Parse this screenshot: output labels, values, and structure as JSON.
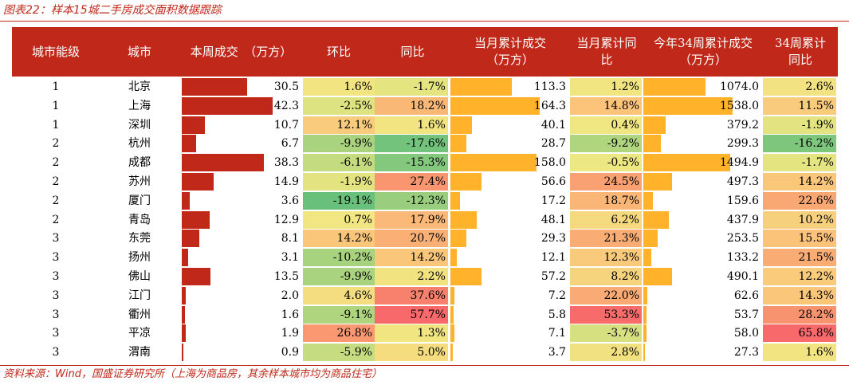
{
  "caption": "图表22：样本15城二手房成交面积数据跟踪",
  "footer": "资料来源：Wind，国盛证券研究所（上海为商品房，其余样本城市均为商品住宅）",
  "colors": {
    "accent": "#c0281a",
    "bar_weekly": "#c0281a",
    "bar_cumulative": "#ffb22a"
  },
  "headers": [
    "城市能级",
    "城市",
    "本周成交　（万方）",
    "环比",
    "同比",
    "当月累计成交（万方）",
    "当月累计同比",
    "今年34周累计成交（万方）",
    "34周累计同比"
  ],
  "rows": [
    {
      "tier": "1",
      "city": "北京",
      "weekly": "30.5",
      "wow": "1.6%",
      "yoy": "-1.7%",
      "month_cum": "113.3",
      "month_yoy": "1.2%",
      "ytd_cum": "1074.0",
      "ytd_yoy": "2.6%"
    },
    {
      "tier": "1",
      "city": "上海",
      "weekly": "42.3",
      "wow": "-2.5%",
      "yoy": "18.2%",
      "month_cum": "164.3",
      "month_yoy": "14.8%",
      "ytd_cum": "1538.0",
      "ytd_yoy": "11.5%"
    },
    {
      "tier": "1",
      "city": "深圳",
      "weekly": "10.7",
      "wow": "12.1%",
      "yoy": "1.6%",
      "month_cum": "40.1",
      "month_yoy": "0.4%",
      "ytd_cum": "379.2",
      "ytd_yoy": "-1.9%"
    },
    {
      "tier": "2",
      "city": "杭州",
      "weekly": "6.7",
      "wow": "-9.9%",
      "yoy": "-17.6%",
      "month_cum": "28.7",
      "month_yoy": "-9.2%",
      "ytd_cum": "299.3",
      "ytd_yoy": "-16.2%"
    },
    {
      "tier": "2",
      "city": "成都",
      "weekly": "38.3",
      "wow": "-6.1%",
      "yoy": "-15.3%",
      "month_cum": "158.0",
      "month_yoy": "-0.5%",
      "ytd_cum": "1494.9",
      "ytd_yoy": "-1.7%"
    },
    {
      "tier": "2",
      "city": "苏州",
      "weekly": "14.9",
      "wow": "-1.9%",
      "yoy": "27.4%",
      "month_cum": "56.6",
      "month_yoy": "24.5%",
      "ytd_cum": "497.3",
      "ytd_yoy": "14.2%"
    },
    {
      "tier": "2",
      "city": "厦门",
      "weekly": "3.6",
      "wow": "-19.1%",
      "yoy": "-12.3%",
      "month_cum": "17.2",
      "month_yoy": "18.7%",
      "ytd_cum": "159.6",
      "ytd_yoy": "22.6%"
    },
    {
      "tier": "2",
      "city": "青岛",
      "weekly": "12.9",
      "wow": "0.7%",
      "yoy": "17.9%",
      "month_cum": "48.1",
      "month_yoy": "6.2%",
      "ytd_cum": "437.9",
      "ytd_yoy": "10.2%"
    },
    {
      "tier": "3",
      "city": "东莞",
      "weekly": "8.1",
      "wow": "14.2%",
      "yoy": "20.7%",
      "month_cum": "29.3",
      "month_yoy": "21.3%",
      "ytd_cum": "253.5",
      "ytd_yoy": "15.5%"
    },
    {
      "tier": "3",
      "city": "扬州",
      "weekly": "3.1",
      "wow": "-10.2%",
      "yoy": "14.2%",
      "month_cum": "12.1",
      "month_yoy": "12.3%",
      "ytd_cum": "133.2",
      "ytd_yoy": "21.5%"
    },
    {
      "tier": "3",
      "city": "佛山",
      "weekly": "13.5",
      "wow": "-9.9%",
      "yoy": "2.2%",
      "month_cum": "57.2",
      "month_yoy": "8.2%",
      "ytd_cum": "490.1",
      "ytd_yoy": "12.2%"
    },
    {
      "tier": "3",
      "city": "江门",
      "weekly": "2.0",
      "wow": "4.6%",
      "yoy": "37.6%",
      "month_cum": "7.2",
      "month_yoy": "22.0%",
      "ytd_cum": "62.6",
      "ytd_yoy": "14.3%"
    },
    {
      "tier": "3",
      "city": "衢州",
      "weekly": "1.6",
      "wow": "-9.1%",
      "yoy": "57.7%",
      "month_cum": "5.8",
      "month_yoy": "53.3%",
      "ytd_cum": "53.7",
      "ytd_yoy": "28.2%"
    },
    {
      "tier": "3",
      "city": "平凉",
      "weekly": "1.9",
      "wow": "26.8%",
      "yoy": "1.3%",
      "month_cum": "7.1",
      "month_yoy": "-3.7%",
      "ytd_cum": "58.0",
      "ytd_yoy": "65.8%"
    },
    {
      "tier": "3",
      "city": "渭南",
      "weekly": "0.9",
      "wow": "-5.9%",
      "yoy": "5.0%",
      "month_cum": "3.7",
      "month_yoy": "2.8%",
      "ytd_cum": "27.3",
      "ytd_yoy": "1.6%"
    }
  ]
}
